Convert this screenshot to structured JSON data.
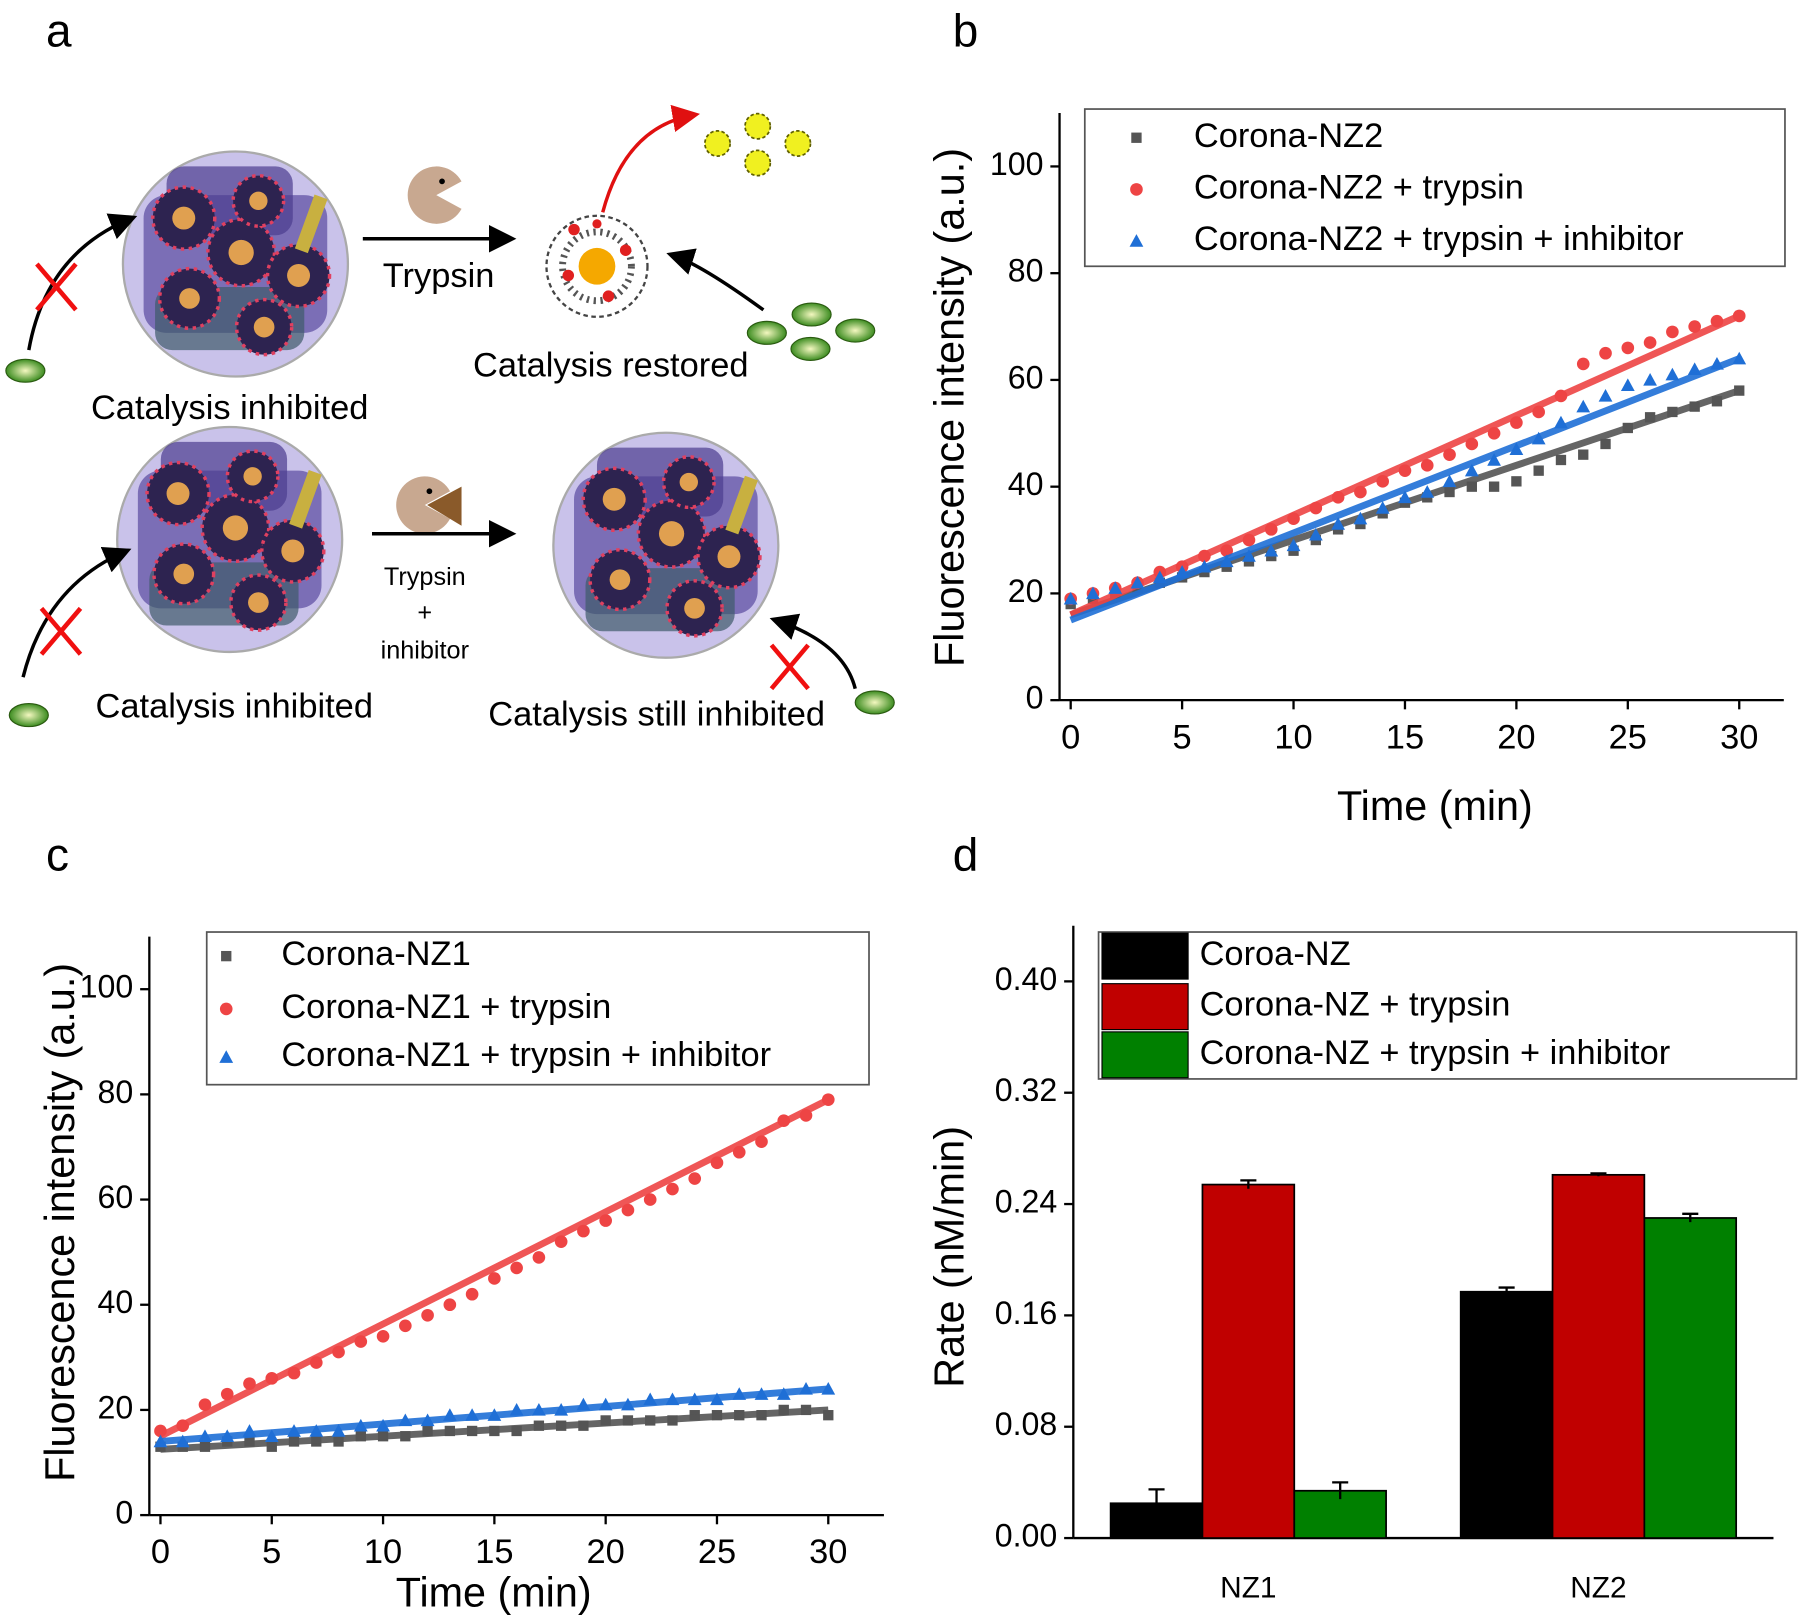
{
  "panel_labels": [
    "a",
    "b",
    "c",
    "d"
  ],
  "diagram": {
    "top": {
      "left_caption": "Catalysis inhibited",
      "arrow_label": "Trypsin",
      "right_caption": "Catalysis restored"
    },
    "bottom": {
      "left_caption": "Catalysis inhibited",
      "arrow_label": [
        "Trypsin",
        "+",
        "inhibitor"
      ],
      "right_caption": "Catalysis still inhibited"
    }
  },
  "chart_data": [
    {
      "type": "scatter",
      "xlabel": "Time (min)",
      "ylabel": "Fluorescence intensity (a.u.)",
      "x": [
        0,
        1,
        2,
        3,
        4,
        5,
        6,
        7,
        8,
        9,
        10,
        11,
        12,
        13,
        14,
        15,
        16,
        17,
        18,
        19,
        20,
        21,
        22,
        23,
        24,
        25,
        26,
        27,
        28,
        29,
        30
      ],
      "xlim": [
        -0.5,
        32
      ],
      "ylim": [
        0,
        110
      ],
      "xticks": [
        0,
        5,
        10,
        15,
        20,
        25,
        30
      ],
      "yticks": [
        0,
        20,
        40,
        60,
        80,
        100
      ],
      "series": [
        {
          "name": "Corona-NZ2",
          "color": "#555555",
          "marker": "square",
          "values": [
            18,
            19,
            20,
            21,
            22,
            23,
            24,
            25,
            26,
            27,
            28,
            30,
            32,
            33,
            35,
            37,
            38,
            39,
            40,
            40,
            41,
            43,
            45,
            46,
            48,
            51,
            53,
            54,
            55,
            56,
            58
          ],
          "fit": [
            16,
            58
          ]
        },
        {
          "name": "Corona-NZ2 + trypsin",
          "color": "#ee4444",
          "marker": "circle",
          "values": [
            19,
            20,
            21,
            22,
            24,
            25,
            27,
            28,
            30,
            32,
            34,
            36,
            38,
            39,
            41,
            43,
            44,
            46,
            48,
            50,
            52,
            54,
            57,
            63,
            65,
            66,
            67,
            69,
            70,
            71,
            72
          ],
          "fit": [
            16,
            72
          ]
        },
        {
          "name": "Corona-NZ2 + trypsin + inhibitor",
          "color": "#1f6fd6",
          "marker": "triangle",
          "values": [
            19,
            20,
            21,
            22,
            23,
            24,
            25,
            26,
            27,
            28,
            29,
            31,
            33,
            34,
            36,
            38,
            39,
            41,
            43,
            45,
            47,
            49,
            52,
            55,
            57,
            59,
            60,
            61,
            62,
            63,
            64
          ],
          "fit": [
            15,
            64
          ]
        }
      ]
    },
    {
      "type": "scatter",
      "xlabel": "Time (min)",
      "ylabel": "Fluorescence intensity (a.u.)",
      "x": [
        0,
        1,
        2,
        3,
        4,
        5,
        6,
        7,
        8,
        9,
        10,
        11,
        12,
        13,
        14,
        15,
        16,
        17,
        18,
        19,
        20,
        21,
        22,
        23,
        24,
        25,
        26,
        27,
        28,
        29,
        30
      ],
      "xlim": [
        -0.5,
        32.5
      ],
      "ylim": [
        0,
        110
      ],
      "xticks": [
        0,
        5,
        10,
        15,
        20,
        25,
        30
      ],
      "yticks": [
        0,
        20,
        40,
        60,
        80,
        100
      ],
      "series": [
        {
          "name": "Corona-NZ1",
          "color": "#555555",
          "marker": "square",
          "values": [
            13,
            13,
            13,
            14,
            14,
            13,
            14,
            14,
            14,
            15,
            15,
            15,
            16,
            16,
            16,
            16,
            16,
            17,
            17,
            17,
            18,
            18,
            18,
            18,
            19,
            19,
            19,
            19,
            20,
            20,
            19
          ],
          "fit": [
            12.5,
            20
          ]
        },
        {
          "name": "Corona-NZ1 + trypsin",
          "color": "#ee4444",
          "marker": "circle",
          "values": [
            16,
            17,
            21,
            23,
            25,
            26,
            27,
            29,
            31,
            33,
            34,
            36,
            38,
            40,
            42,
            45,
            47,
            49,
            52,
            54,
            56,
            58,
            60,
            62,
            64,
            67,
            69,
            71,
            75,
            76,
            79
          ],
          "fit": [
            15,
            79
          ]
        },
        {
          "name": "Corona-NZ1 + trypsin + inhibitor",
          "color": "#1f6fd6",
          "marker": "triangle",
          "values": [
            14,
            14,
            15,
            15,
            16,
            15,
            16,
            16,
            16,
            17,
            17,
            18,
            18,
            19,
            19,
            19,
            20,
            20,
            20,
            21,
            21,
            21,
            22,
            22,
            22,
            22,
            23,
            23,
            23,
            24,
            24
          ],
          "fit": [
            14,
            24
          ]
        }
      ]
    },
    {
      "type": "bar",
      "ylabel": "Rate (nM/min)",
      "categories": [
        "NZ1",
        "NZ2"
      ],
      "ylim": [
        0,
        0.44
      ],
      "yticks": [
        {
          "value": 0,
          "label": "0.00"
        },
        0.08,
        0.16,
        0.24,
        0.32,
        {
          "value": 0.4,
          "label": "0.40"
        }
      ],
      "series": [
        {
          "name": "Coroa-NZ",
          "color": "#000000",
          "values": [
            0.025,
            0.177
          ],
          "errors": [
            0.01,
            0.003
          ]
        },
        {
          "name": "Corona-NZ + trypsin",
          "color": "#c00000",
          "values": [
            0.254,
            0.261
          ],
          "errors": [
            0.003,
            0.001
          ]
        },
        {
          "name": "Corona-NZ + trypsin + inhibitor",
          "color": "#008000",
          "values": [
            0.034,
            0.23
          ],
          "errors": [
            0.006,
            0.003
          ]
        }
      ]
    }
  ]
}
